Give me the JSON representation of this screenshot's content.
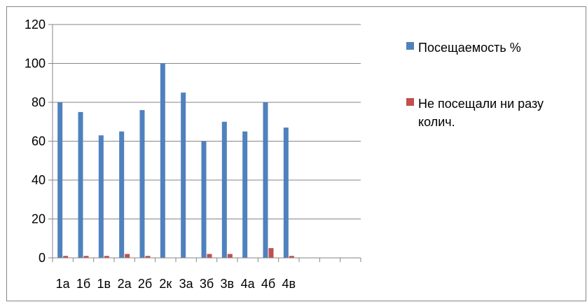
{
  "chart_data": {
    "type": "bar",
    "categories": [
      "1а",
      "1б",
      "1в",
      "2а",
      "2б",
      "2к",
      "3а",
      "3б",
      "3в",
      "4а",
      "4б",
      "4в",
      "",
      "",
      ""
    ],
    "series": [
      {
        "name": "Посещаемость %",
        "color": "#4F81BD",
        "values": [
          80,
          75,
          63,
          65,
          76,
          100,
          85,
          60,
          70,
          65,
          80,
          67,
          null,
          null,
          null
        ]
      },
      {
        "name": "Не посещали ни разу колич.",
        "color": "#C0504D",
        "values": [
          1,
          1,
          1,
          2,
          1,
          0,
          0,
          2,
          2,
          0,
          5,
          1,
          null,
          null,
          null
        ]
      }
    ],
    "yticks": [
      0,
      20,
      40,
      60,
      80,
      100,
      120
    ],
    "ylim": [
      0,
      120
    ],
    "grid": true,
    "legend": "right",
    "legend_lines": [
      [
        "Посещаемость %"
      ],
      [
        "Не посещали ни разу",
        "колич."
      ]
    ]
  }
}
